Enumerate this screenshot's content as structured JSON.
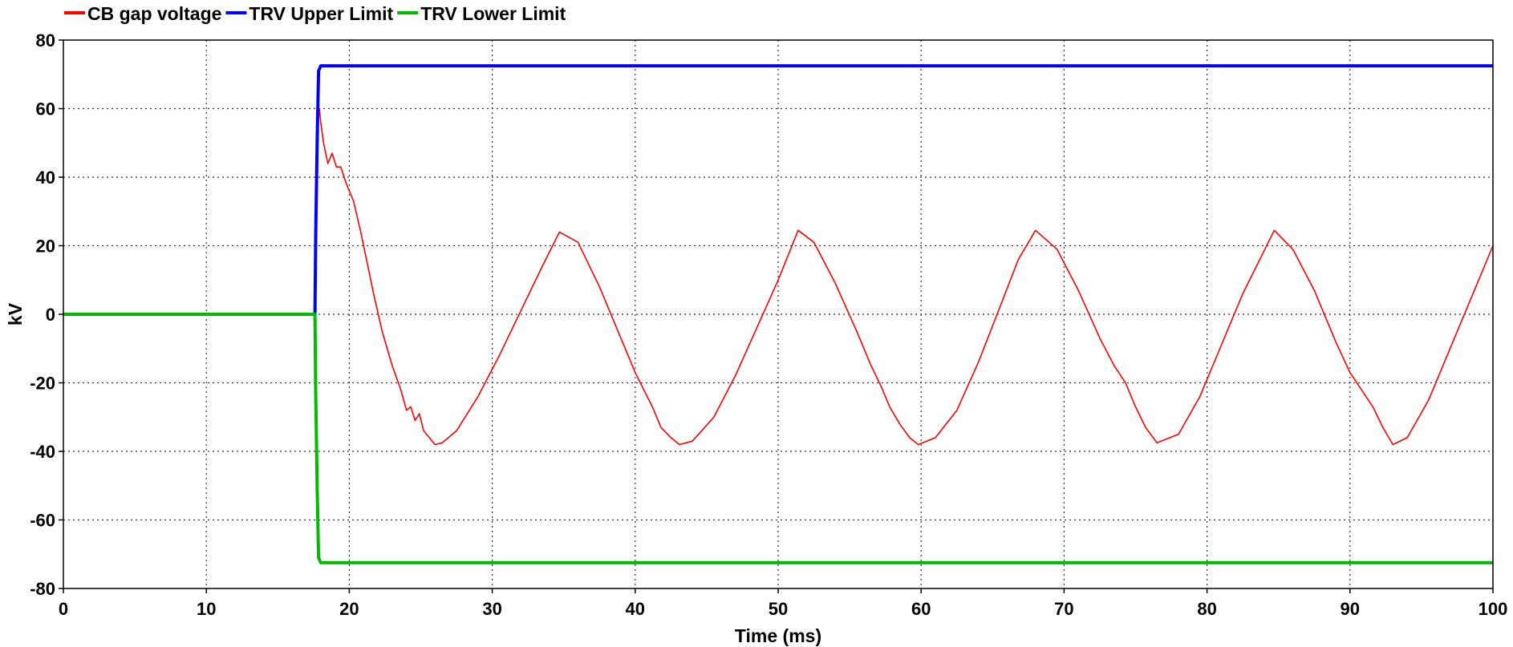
{
  "chart_data": {
    "type": "line",
    "xlabel": "Time (ms)",
    "ylabel": "kV",
    "xlim": [
      0,
      100
    ],
    "ylim": [
      -80,
      80
    ],
    "x_ticks": [
      0,
      10,
      20,
      30,
      40,
      50,
      60,
      70,
      80,
      90,
      100
    ],
    "y_ticks": [
      80,
      60,
      40,
      20,
      0,
      -20,
      -40,
      -60,
      -80
    ],
    "grid": true,
    "legend_position": "top-left",
    "series": [
      {
        "name": "CB gap voltage",
        "color": "#ff0000",
        "x": [
          0,
          10,
          17.6,
          17.7,
          17.8,
          17.9,
          18.0,
          18.2,
          18.5,
          18.8,
          19.1,
          19.4,
          19.8,
          20.3,
          20.8,
          21.2,
          21.7,
          22.3,
          23.0,
          23.6,
          24.0,
          24.3,
          24.6,
          24.9,
          25.2,
          25.6,
          26.0,
          26.5,
          27.5,
          29.0,
          30.5,
          32.0,
          33.5,
          34.7,
          36.0,
          37.5,
          39.0,
          40.0,
          40.6,
          41.2,
          41.8,
          42.5,
          43.1,
          44.0,
          45.5,
          47.0,
          48.5,
          50.0,
          51.4,
          52.5,
          54.0,
          55.5,
          56.5,
          57.2,
          57.8,
          58.5,
          59.2,
          59.8,
          61.0,
          62.5,
          64.0,
          65.5,
          66.8,
          68.0,
          69.5,
          71.0,
          72.5,
          73.5,
          74.3,
          75.0,
          75.7,
          76.5,
          78.0,
          79.5,
          81.0,
          82.5,
          84.7,
          86.0,
          87.5,
          89.0,
          90.0,
          90.8,
          91.6,
          92.3,
          93.0,
          94.0,
          95.5,
          97.0,
          98.5,
          100
        ],
        "y": [
          0,
          0,
          0,
          45,
          58,
          60,
          56,
          50,
          44,
          47,
          43,
          43,
          38,
          33,
          24,
          16,
          6,
          -5,
          -15,
          -22,
          -28,
          -27,
          -31,
          -29,
          -34,
          -36,
          -38,
          -37.5,
          -34,
          -24,
          -12,
          1,
          14,
          24,
          21,
          8,
          -7,
          -17,
          -22,
          -27,
          -33,
          -36,
          -38,
          -37,
          -30,
          -18,
          -4,
          10,
          24.5,
          21,
          9,
          -5,
          -15,
          -21,
          -27,
          -32,
          -36,
          -38,
          -36,
          -28,
          -14,
          2,
          16,
          24.5,
          19,
          7,
          -7,
          -15,
          -20,
          -27,
          -33,
          -37.5,
          -35,
          -24,
          -9,
          6,
          24.5,
          19,
          7,
          -8,
          -17,
          -22,
          -27,
          -33,
          -38,
          -36,
          -25,
          -10,
          5,
          20
        ]
      },
      {
        "name": "TRV Upper Limit",
        "color": "#0000ff",
        "x": [
          0,
          17.6,
          17.65,
          17.75,
          17.85,
          18.0,
          100
        ],
        "y": [
          0,
          0,
          22,
          50,
          71,
          72.5,
          72.5
        ]
      },
      {
        "name": "TRV Lower Limit",
        "color": "#00bb00",
        "x": [
          0,
          17.6,
          17.65,
          17.75,
          17.85,
          18.0,
          100
        ],
        "y": [
          0,
          0,
          -22,
          -50,
          -71,
          -72.5,
          -72.5
        ]
      }
    ]
  }
}
